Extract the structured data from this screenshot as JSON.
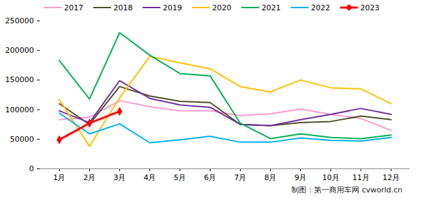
{
  "chart_data": {
    "type": "line",
    "categories": [
      "1月",
      "2月",
      "3月",
      "4月",
      "5月",
      "6月",
      "7月",
      "8月",
      "9月",
      "10月",
      "11月",
      "12月"
    ],
    "series": [
      {
        "name": "2017",
        "color": "#ff99cc",
        "values": [
          83000,
          87000,
          115000,
          105000,
          98000,
          98000,
          90000,
          93000,
          101000,
          92000,
          85000,
          65000
        ]
      },
      {
        "name": "2018",
        "color": "#4f4f2a",
        "values": [
          110000,
          75000,
          139000,
          123000,
          114000,
          112000,
          75000,
          73000,
          78000,
          80000,
          89000,
          83000
        ]
      },
      {
        "name": "2019",
        "color": "#7030a0",
        "values": [
          98000,
          78000,
          149000,
          119000,
          108000,
          104000,
          75000,
          73000,
          83000,
          92000,
          102000,
          92000
        ]
      },
      {
        "name": "2020",
        "color": "#ffc000",
        "values": [
          117000,
          38000,
          120000,
          190000,
          179000,
          169000,
          139000,
          130000,
          150000,
          137000,
          135000,
          110000
        ]
      },
      {
        "name": "2021",
        "color": "#00b050",
        "values": [
          183000,
          118000,
          230000,
          192000,
          161000,
          157000,
          77000,
          51000,
          59000,
          53000,
          51000,
          57000
        ]
      },
      {
        "name": "2022",
        "color": "#00b0f0",
        "values": [
          94000,
          59000,
          76000,
          44000,
          49000,
          55000,
          45000,
          45000,
          52000,
          48000,
          47000,
          53000
        ]
      },
      {
        "name": "2023",
        "color": "#ff0000",
        "marker": "diamond",
        "values": [
          49000,
          77000,
          97000,
          null,
          null,
          null,
          null,
          null,
          null,
          null,
          null,
          null
        ]
      }
    ],
    "ylim": [
      0,
      250000
    ],
    "yticks": [
      0,
      50000,
      100000,
      150000,
      200000,
      250000
    ],
    "grid": false,
    "legend": "top",
    "annotations": [
      "制图：第一商用车网 cvworld.cn"
    ]
  }
}
